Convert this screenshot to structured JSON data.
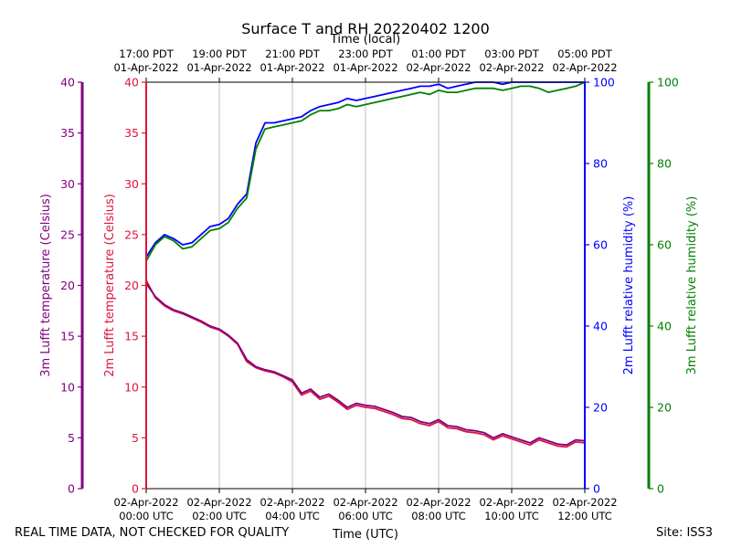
{
  "chart_data": {
    "type": "line",
    "title": "Surface T and RH 20220402 1200",
    "xlabel_bottom": "Time (UTC)",
    "xlabel_top": "Time (local)",
    "x_range_utc": [
      "2022-04-02 00:00",
      "2022-04-02 12:00"
    ],
    "bottom_ticks": [
      {
        "date": "02-Apr-2022",
        "time": "00:00 UTC"
      },
      {
        "date": "02-Apr-2022",
        "time": "02:00 UTC"
      },
      {
        "date": "02-Apr-2022",
        "time": "04:00 UTC"
      },
      {
        "date": "02-Apr-2022",
        "time": "06:00 UTC"
      },
      {
        "date": "02-Apr-2022",
        "time": "08:00 UTC"
      },
      {
        "date": "02-Apr-2022",
        "time": "10:00 UTC"
      },
      {
        "date": "02-Apr-2022",
        "time": "12:00 UTC"
      }
    ],
    "top_ticks": [
      {
        "time": "17:00 PDT",
        "date": "01-Apr-2022"
      },
      {
        "time": "19:00 PDT",
        "date": "01-Apr-2022"
      },
      {
        "time": "21:00 PDT",
        "date": "01-Apr-2022"
      },
      {
        "time": "23:00 PDT",
        "date": "01-Apr-2022"
      },
      {
        "time": "01:00 PDT",
        "date": "02-Apr-2022"
      },
      {
        "time": "03:00 PDT",
        "date": "02-Apr-2022"
      },
      {
        "time": "05:00 PDT",
        "date": "02-Apr-2022"
      }
    ],
    "axes": [
      {
        "label": "3m Lufft temperature (Celsius)",
        "color": "#800080",
        "range": [
          0,
          40
        ],
        "ticks": [
          0,
          5,
          10,
          15,
          20,
          25,
          30,
          35,
          40
        ]
      },
      {
        "label": "2m Lufft temperature (Celsius)",
        "color": "#dc143c",
        "range": [
          0,
          40
        ],
        "ticks": [
          0,
          5,
          10,
          15,
          20,
          25,
          30,
          35,
          40
        ]
      },
      {
        "label": "2m Lufft relative humidity (%)",
        "color": "#0000ff",
        "range": [
          0,
          100
        ],
        "ticks": [
          0,
          20,
          40,
          60,
          80,
          100
        ]
      },
      {
        "label": "3m Lufft relative humidity (%)",
        "color": "#008000",
        "range": [
          0,
          100
        ],
        "ticks": [
          0,
          20,
          40,
          60,
          80,
          100
        ]
      }
    ],
    "grid": "vertical",
    "series": [
      {
        "axis": "temp",
        "color": "#dc143c",
        "x_hours": [
          0,
          0.25,
          0.5,
          0.75,
          1.0,
          1.25,
          1.5,
          1.75,
          2.0,
          2.25,
          2.5,
          2.75,
          3.0,
          3.25,
          3.5,
          3.75,
          4.0,
          4.25,
          4.5,
          4.75,
          5.0,
          5.25,
          5.5,
          5.75,
          6.0,
          6.25,
          6.5,
          6.75,
          7.0,
          7.25,
          7.5,
          7.75,
          8.0,
          8.25,
          8.5,
          8.75,
          9.0,
          9.25,
          9.5,
          9.75,
          10.0,
          10.25,
          10.5,
          10.75,
          11.0,
          11.25,
          11.5,
          11.75,
          12.0
        ],
        "values": [
          20.5,
          18.8,
          18.0,
          17.5,
          17.2,
          16.8,
          16.4,
          15.9,
          15.6,
          15.0,
          14.2,
          12.5,
          11.9,
          11.6,
          11.4,
          11.0,
          10.5,
          9.2,
          9.6,
          8.8,
          9.1,
          8.5,
          7.8,
          8.2,
          8.0,
          7.9,
          7.6,
          7.3,
          6.9,
          6.8,
          6.4,
          6.2,
          6.6,
          6.0,
          5.9,
          5.6,
          5.5,
          5.3,
          4.8,
          5.2,
          4.9,
          4.6,
          4.3,
          4.8,
          4.5,
          4.2,
          4.1,
          4.6,
          4.5
        ]
      },
      {
        "axis": "temp",
        "color": "#800080",
        "x_hours": [
          0,
          0.25,
          0.5,
          0.75,
          1.0,
          1.25,
          1.5,
          1.75,
          2.0,
          2.25,
          2.5,
          2.75,
          3.0,
          3.25,
          3.5,
          3.75,
          4.0,
          4.25,
          4.5,
          4.75,
          5.0,
          5.25,
          5.5,
          5.75,
          6.0,
          6.25,
          6.5,
          6.75,
          7.0,
          7.25,
          7.5,
          7.75,
          8.0,
          8.25,
          8.5,
          8.75,
          9.0,
          9.25,
          9.5,
          9.75,
          10.0,
          10.25,
          10.5,
          10.75,
          11.0,
          11.25,
          11.5,
          11.75,
          12.0
        ],
        "values": [
          20.2,
          18.9,
          18.1,
          17.6,
          17.3,
          16.9,
          16.5,
          16.0,
          15.7,
          15.1,
          14.3,
          12.7,
          12.0,
          11.7,
          11.5,
          11.1,
          10.7,
          9.4,
          9.8,
          9.0,
          9.3,
          8.7,
          8.0,
          8.4,
          8.2,
          8.1,
          7.8,
          7.5,
          7.1,
          7.0,
          6.6,
          6.4,
          6.8,
          6.2,
          6.1,
          5.8,
          5.7,
          5.5,
          5.0,
          5.4,
          5.1,
          4.8,
          4.5,
          5.0,
          4.7,
          4.4,
          4.3,
          4.8,
          4.7
        ]
      },
      {
        "axis": "rh",
        "color": "#0000ff",
        "x_hours": [
          0,
          0.25,
          0.5,
          0.75,
          1.0,
          1.25,
          1.5,
          1.75,
          2.0,
          2.25,
          2.5,
          2.75,
          3.0,
          3.25,
          3.5,
          3.75,
          4.0,
          4.25,
          4.5,
          4.75,
          5.0,
          5.25,
          5.5,
          5.75,
          6.0,
          6.25,
          6.5,
          6.75,
          7.0,
          7.25,
          7.5,
          7.75,
          8.0,
          8.25,
          8.5,
          8.75,
          9.0,
          9.25,
          9.5,
          9.75,
          10.0,
          10.25,
          10.5,
          10.75,
          11.0,
          11.25,
          11.5,
          11.75,
          12.0
        ],
        "values": [
          57.0,
          60.5,
          62.5,
          61.5,
          60.0,
          60.5,
          62.5,
          64.5,
          65.0,
          66.5,
          70.0,
          72.5,
          85.0,
          90.0,
          90.0,
          90.5,
          91.0,
          91.5,
          93.0,
          94.0,
          94.5,
          95.0,
          96.0,
          95.5,
          96.0,
          96.5,
          97.0,
          97.5,
          98.0,
          98.5,
          99.0,
          99.0,
          99.5,
          98.5,
          99.0,
          99.5,
          100,
          100,
          100,
          99.5,
          100,
          100,
          100,
          100,
          100,
          100,
          100,
          100,
          100
        ]
      },
      {
        "axis": "rh",
        "color": "#008000",
        "x_hours": [
          0,
          0.25,
          0.5,
          0.75,
          1.0,
          1.25,
          1.5,
          1.75,
          2.0,
          2.25,
          2.5,
          2.75,
          3.0,
          3.25,
          3.5,
          3.75,
          4.0,
          4.25,
          4.5,
          4.75,
          5.0,
          5.25,
          5.5,
          5.75,
          6.0,
          6.25,
          6.5,
          6.75,
          7.0,
          7.25,
          7.5,
          7.75,
          8.0,
          8.25,
          8.5,
          8.75,
          9.0,
          9.25,
          9.5,
          9.75,
          10.0,
          10.25,
          10.5,
          10.75,
          11.0,
          11.25,
          11.5,
          11.75,
          12.0
        ],
        "values": [
          56.0,
          60.0,
          62.0,
          61.0,
          59.0,
          59.5,
          61.5,
          63.5,
          64.0,
          65.5,
          69.0,
          71.5,
          83.5,
          88.5,
          89.0,
          89.5,
          90.0,
          90.5,
          92.0,
          93.0,
          93.0,
          93.5,
          94.5,
          94.0,
          94.5,
          95.0,
          95.5,
          96.0,
          96.5,
          97.0,
          97.5,
          97.0,
          98.0,
          97.5,
          97.5,
          98.0,
          98.5,
          98.5,
          98.5,
          98.0,
          98.5,
          99.0,
          99.0,
          98.5,
          97.5,
          98.0,
          98.5,
          99.0,
          100
        ]
      }
    ]
  },
  "footer": {
    "left": "REAL TIME DATA, NOT CHECKED FOR QUALITY",
    "right": "Site: ISS3"
  }
}
